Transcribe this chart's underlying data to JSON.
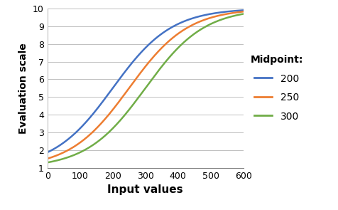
{
  "title": "",
  "xlabel": "Input values",
  "ylabel": "Evaluation scale",
  "xlim": [
    0,
    600
  ],
  "ylim": [
    1,
    10
  ],
  "xticks": [
    0,
    100,
    200,
    300,
    400,
    500,
    600
  ],
  "yticks": [
    1,
    2,
    3,
    4,
    5,
    6,
    7,
    8,
    9,
    10
  ],
  "curves": [
    {
      "midpoint": 200,
      "color": "#4472C4",
      "label": "200"
    },
    {
      "midpoint": 250,
      "color": "#ED7D31",
      "label": "250"
    },
    {
      "midpoint": 300,
      "color": "#70AD47",
      "label": "300"
    }
  ],
  "spread": 90,
  "ymin": 1,
  "ymax": 10,
  "legend_title": "Midpoint:",
  "background_color": "#FFFFFF",
  "grid_color": "#C0C0C0",
  "xlabel_fontsize": 11,
  "ylabel_fontsize": 10,
  "legend_fontsize": 10,
  "tick_fontsize": 9
}
